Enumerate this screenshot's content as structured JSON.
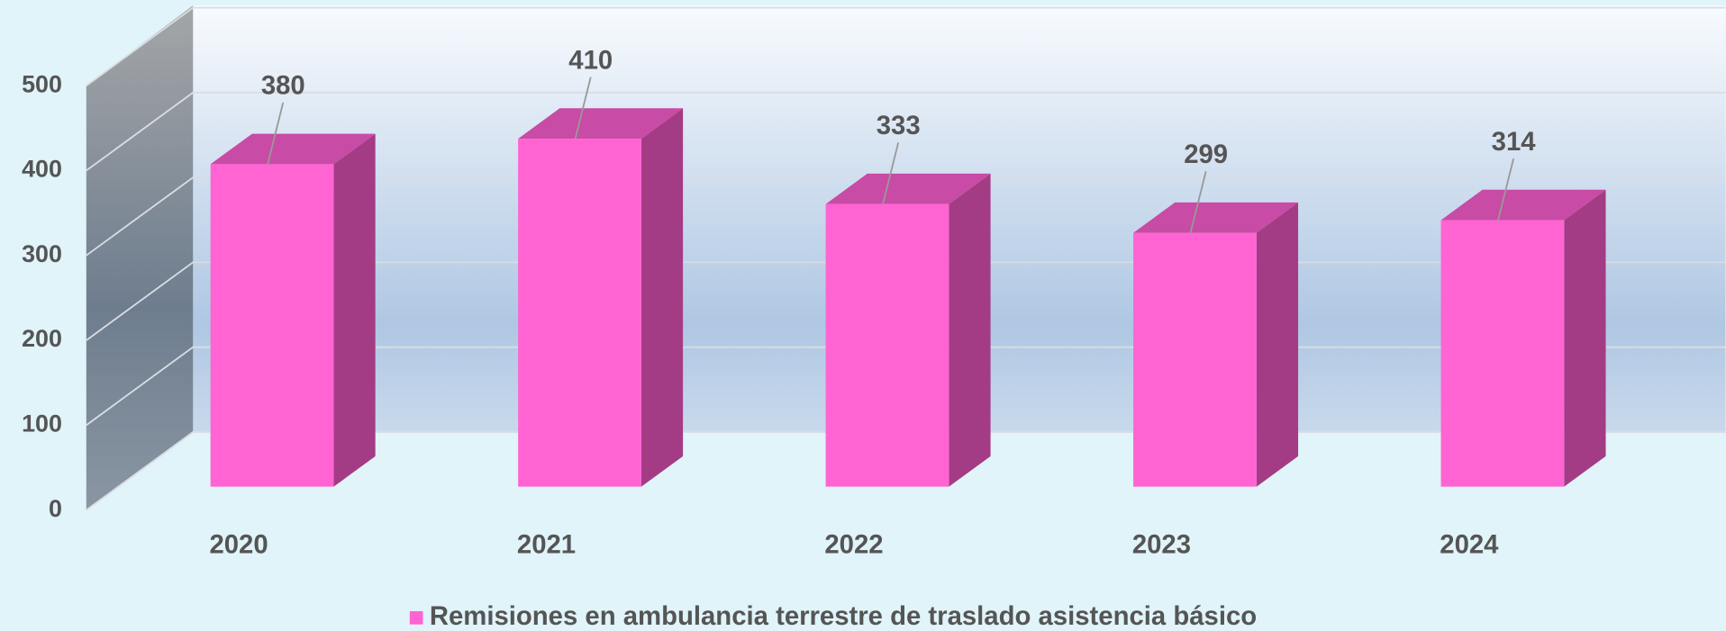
{
  "chart_data": {
    "type": "bar3d",
    "categories": [
      "2020",
      "2021",
      "2022",
      "2023",
      "2024"
    ],
    "series": [
      {
        "name": "Remisiones en ambulancia terrestre de traslado asistencia básico",
        "color": "#ff64d2",
        "values": [
          380,
          410,
          333,
          299,
          314
        ]
      }
    ],
    "ylim": [
      0,
      500
    ],
    "yticks": [
      0,
      100,
      200,
      300,
      400,
      500
    ],
    "grid": true,
    "legend": "bottom"
  }
}
